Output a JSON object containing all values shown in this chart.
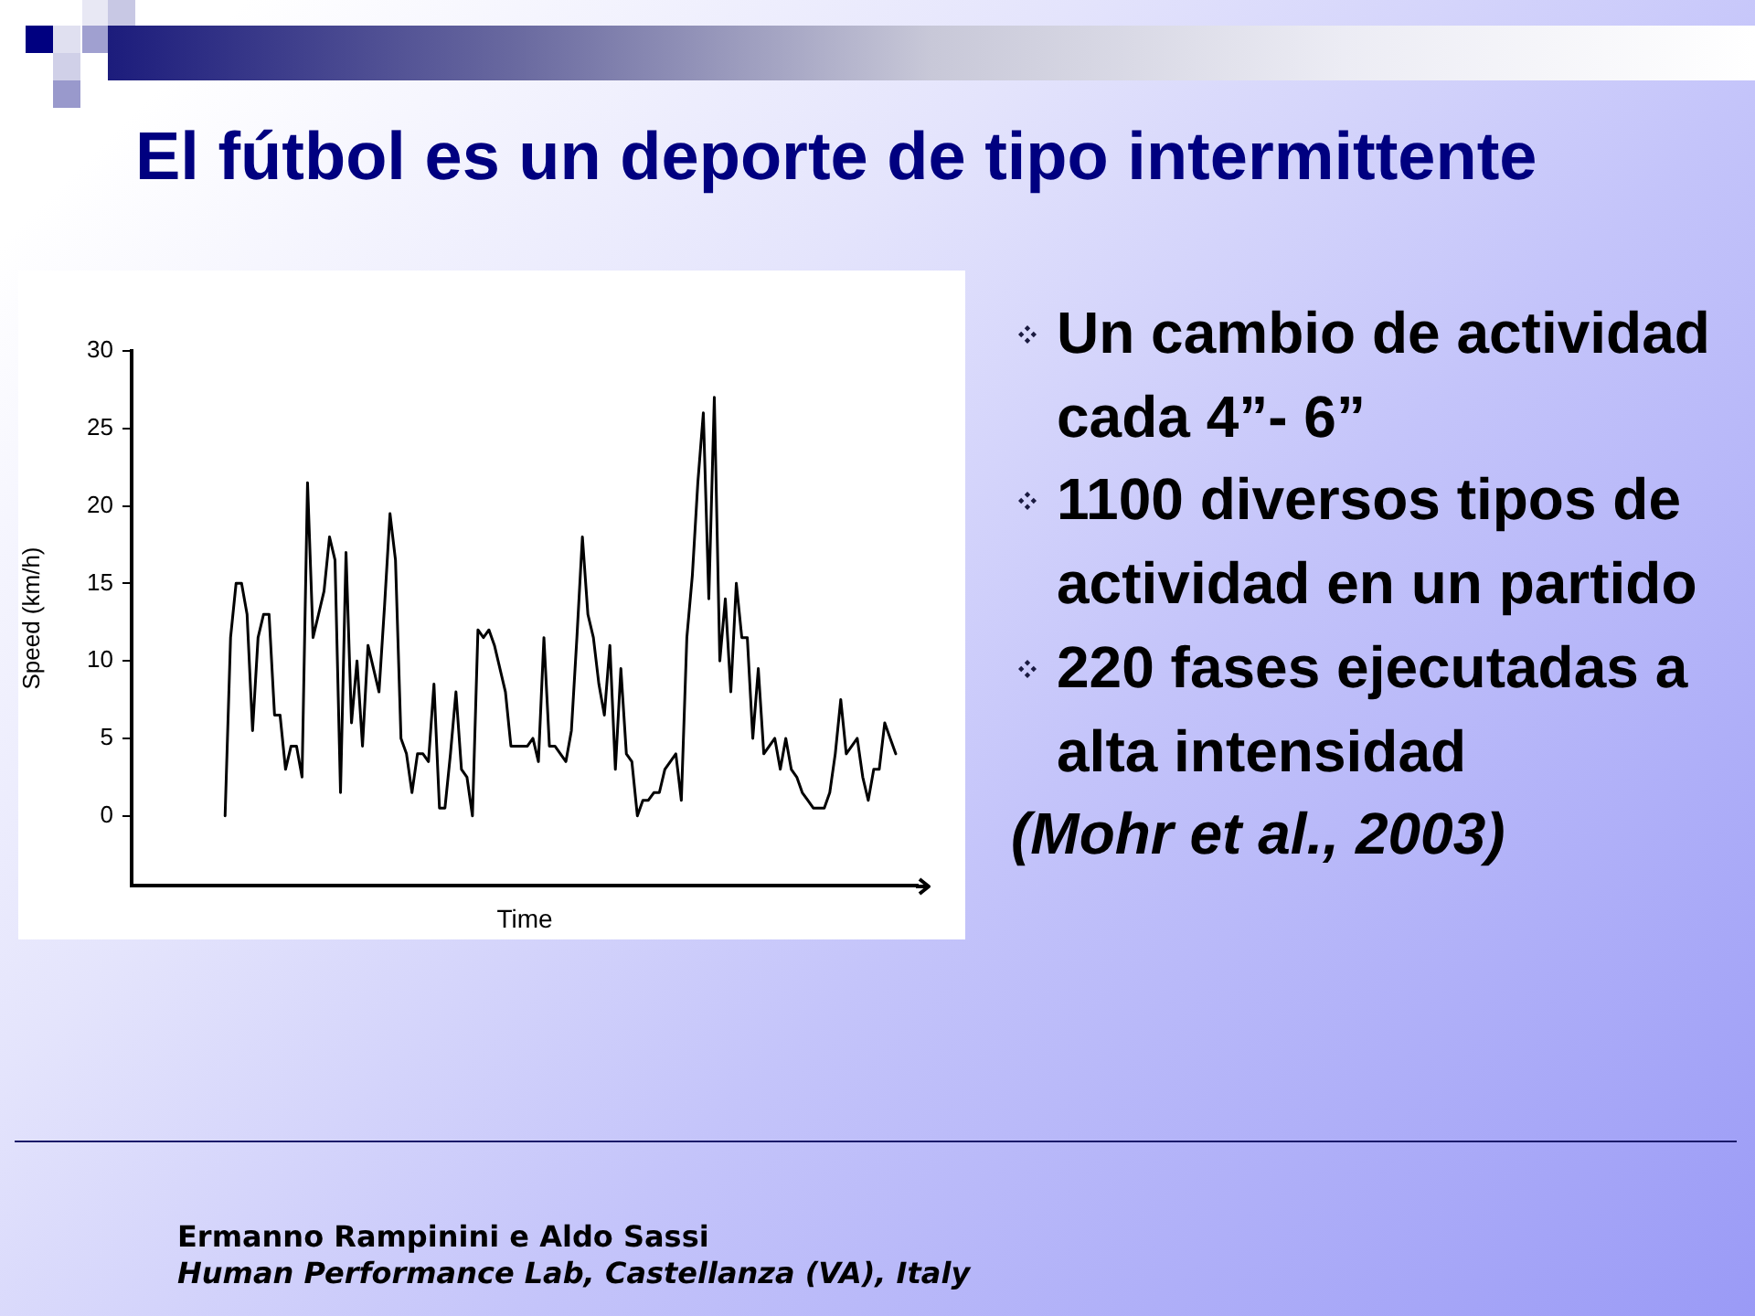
{
  "chart_data": {
    "type": "line",
    "title": "El fútbol es un deporte de tipo intermittente",
    "xlabel": "Time",
    "ylabel": "Speed (km/h)",
    "categories": [
      null,
      null,
      null,
      null,
      null,
      null,
      null,
      null,
      null,
      null,
      null,
      null,
      null,
      null,
      null,
      null,
      null,
      null,
      null,
      null,
      null,
      null,
      null,
      null,
      null,
      null,
      null,
      null,
      null,
      null,
      null,
      null,
      null,
      null,
      null,
      null,
      null,
      null,
      null,
      null,
      null,
      null,
      null,
      null,
      null,
      null,
      null,
      null,
      null,
      null,
      null,
      null,
      null,
      null,
      null,
      null,
      null,
      null,
      null,
      null,
      null,
      null,
      null,
      null,
      null,
      null,
      null,
      null,
      null,
      null,
      null,
      null,
      null,
      null,
      null,
      null,
      null,
      null,
      null,
      null,
      null,
      null,
      null,
      null,
      null,
      null,
      null,
      null,
      null,
      null,
      null,
      null,
      null,
      null,
      null,
      null,
      null,
      null,
      null,
      null,
      null,
      null,
      null,
      null,
      null,
      null,
      null,
      null,
      null,
      null,
      null,
      null,
      null,
      null,
      null,
      null,
      null,
      null,
      null,
      null,
      null,
      null,
      null,
      null,
      null,
      null,
      null,
      null,
      null,
      null,
      null,
      null,
      null,
      null,
      null,
      null,
      null,
      null,
      null,
      null,
      null,
      null,
      null,
      null
    ],
    "values": [
      null,
      null,
      null,
      null,
      null,
      null,
      null,
      null,
      null,
      null,
      null,
      null,
      null,
      null,
      null,
      null,
      null,
      0,
      11.5,
      15,
      15,
      13,
      5.5,
      11.5,
      13,
      13,
      6.5,
      6.5,
      3,
      4.5,
      4.5,
      2.5,
      21.5,
      11.5,
      13,
      14.5,
      18,
      16.5,
      1.5,
      17,
      6,
      10,
      4.5,
      11,
      9.5,
      8,
      13.5,
      19.5,
      16.5,
      5,
      4,
      1.5,
      4,
      4,
      3.5,
      8.5,
      0.5,
      0.5,
      4,
      8,
      3,
      2.5,
      0,
      12,
      11.5,
      12,
      11,
      9.5,
      8,
      4.5,
      4.5,
      4.5,
      4.5,
      5,
      3.5,
      11.5,
      4.5,
      4.5,
      4,
      3.5,
      5.5,
      11.5,
      18,
      13,
      11.5,
      8.5,
      6.5,
      11,
      3,
      9.5,
      4,
      3.5,
      0,
      1,
      1,
      1.5,
      1.5,
      3,
      3.5,
      4,
      1,
      11.5,
      15.5,
      21.5,
      26,
      14,
      27,
      10,
      14,
      8,
      15,
      11.5,
      11.5,
      5,
      9.5,
      4,
      4.5,
      5,
      3,
      5,
      3,
      2.5,
      1.5,
      1,
      0.5,
      0.5,
      0.5,
      1.5,
      4,
      7.5,
      4,
      4.5,
      5,
      2.5,
      1,
      3,
      3,
      6,
      5,
      4,
      null,
      null,
      null,
      null
    ],
    "color": "#000000",
    "ylim": [
      -4.5,
      30
    ],
    "yticks": [
      0,
      5,
      10,
      15,
      20,
      25,
      30
    ],
    "marker": "none",
    "line_style": "solid",
    "annotations": [
      "Un cambio de actividad cada 4”- 6”",
      "1100 diversos tipos de actividad en un partido",
      "220 fases ejecutadas a alta intensidad",
      "(Mohr et al., 2003)",
      "Ermanno Rampinini e Aldo Sassi",
      "Human Performance Lab, Castellanza (VA), Italy"
    ]
  }
}
